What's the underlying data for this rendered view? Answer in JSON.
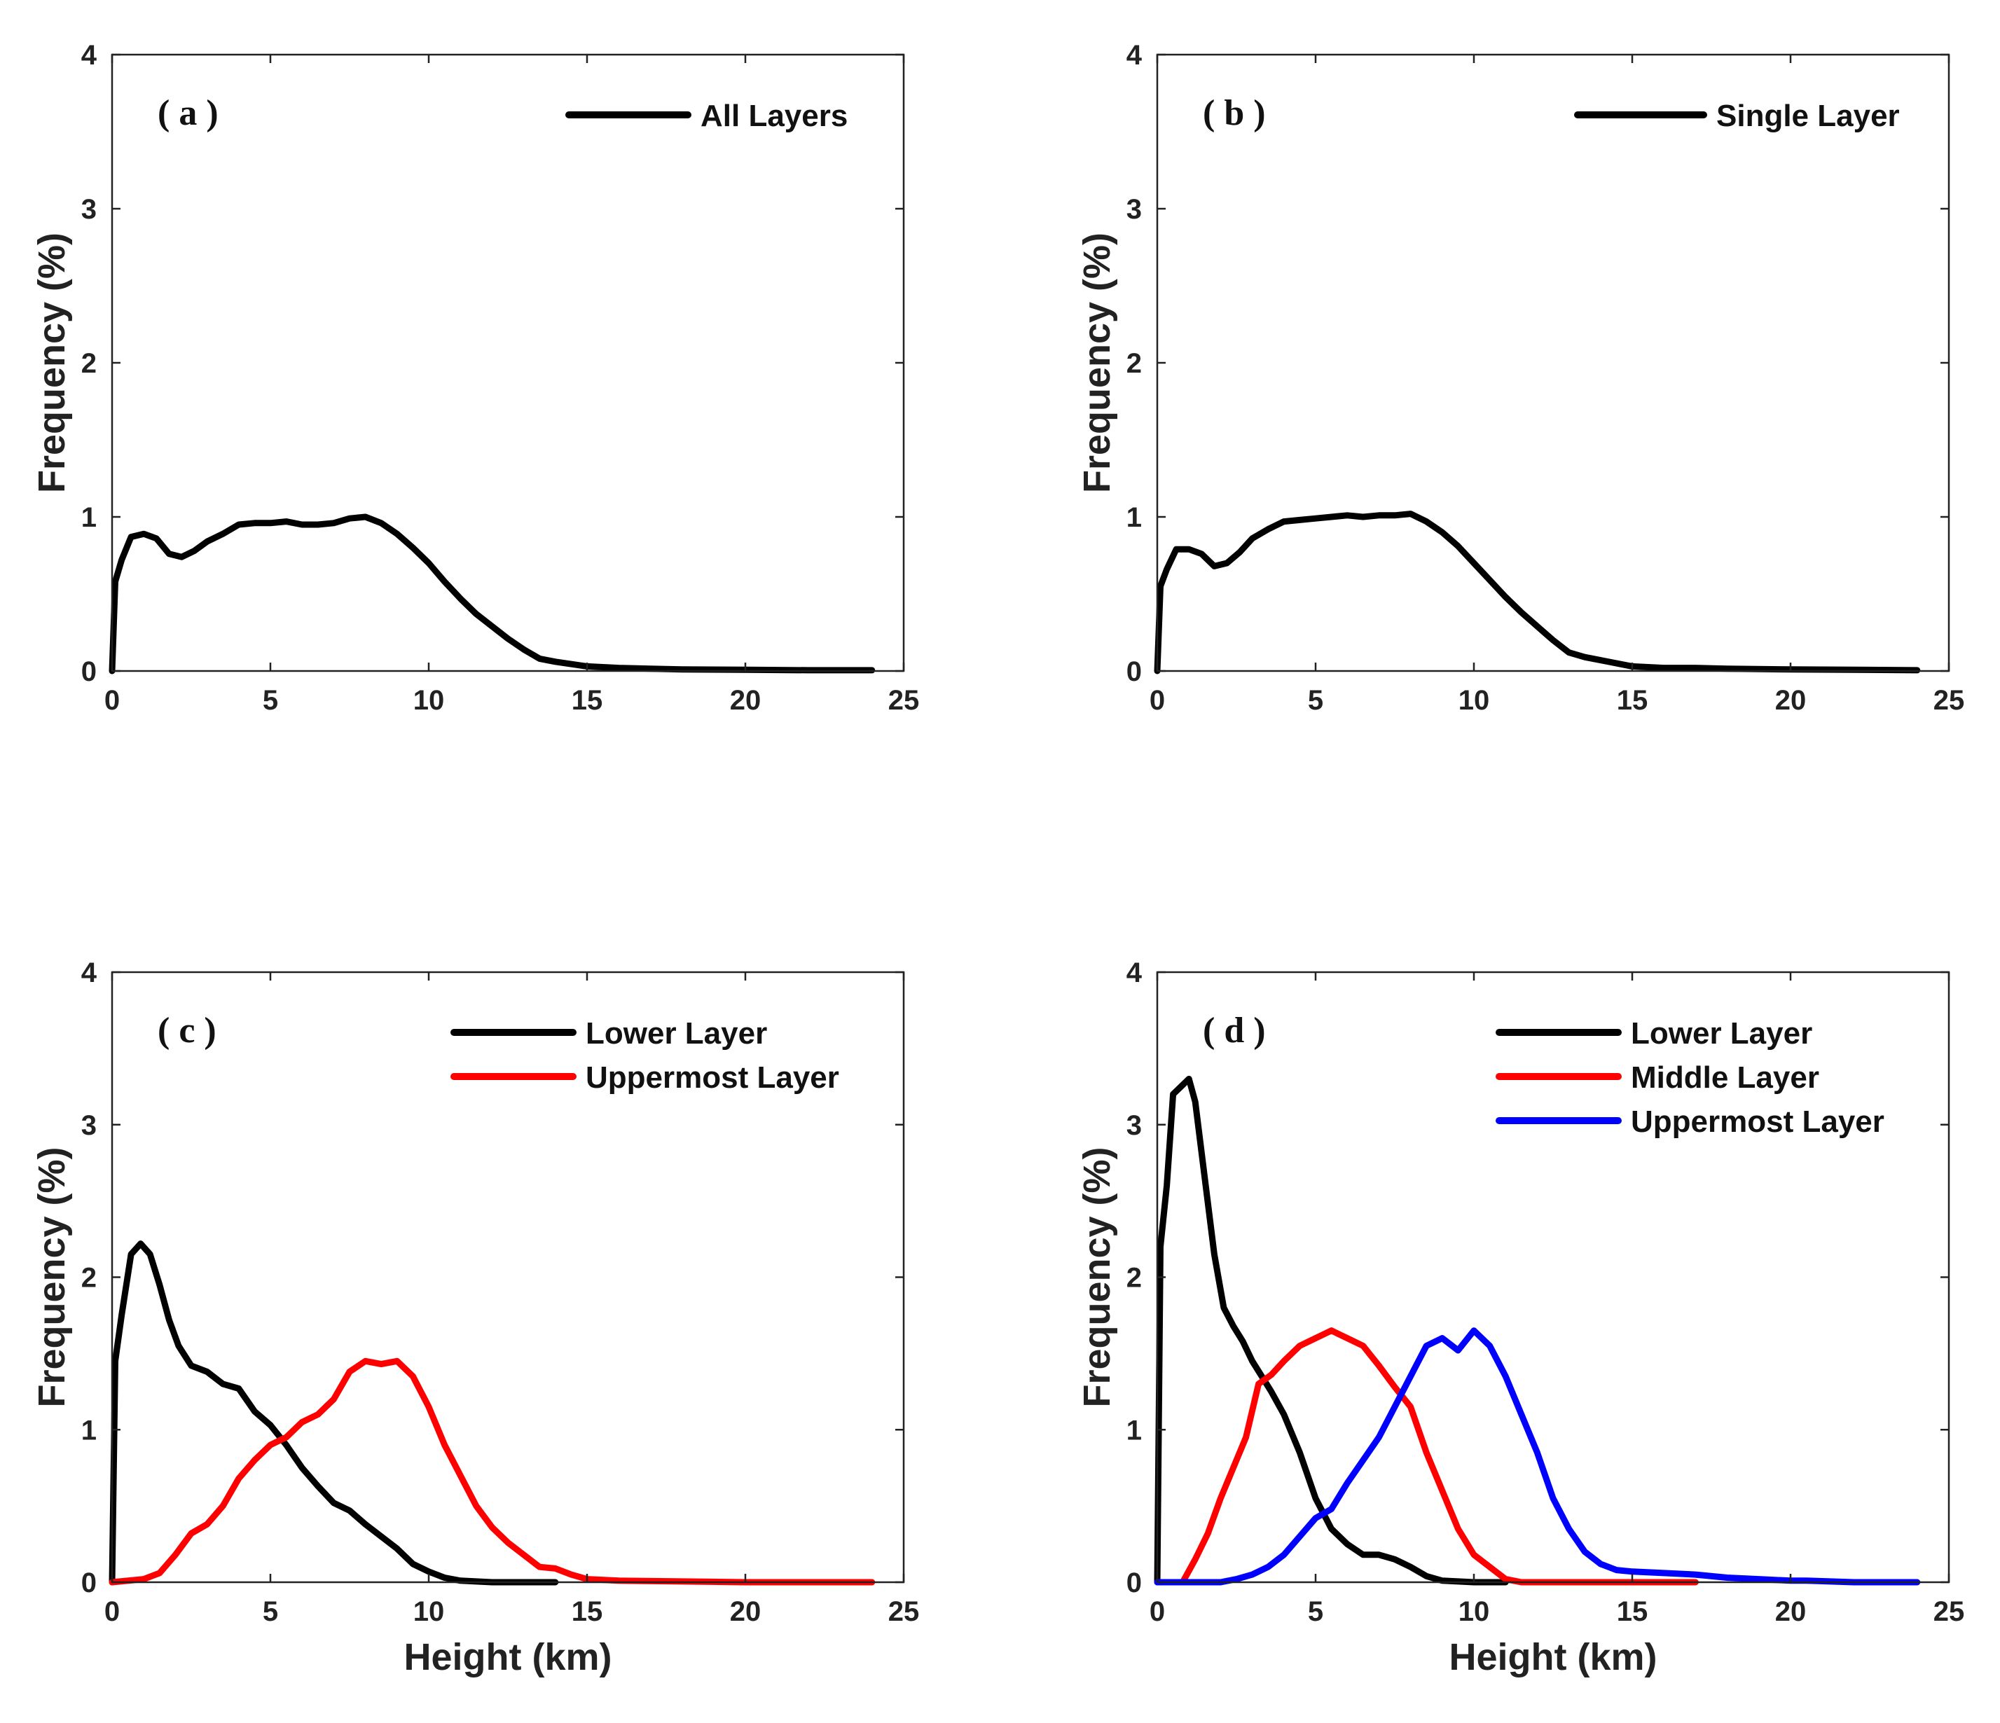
{
  "chart_data": [
    {
      "type": "line",
      "panel_label": "( a )",
      "xlabel": "",
      "ylabel": "Frequency (%)",
      "xlim": [
        0,
        25
      ],
      "ylim": [
        0,
        4
      ],
      "xticks": [
        0,
        5,
        10,
        15,
        20,
        25
      ],
      "yticks": [
        0,
        1,
        2,
        3,
        4
      ],
      "legend_position": "top-right",
      "series": [
        {
          "name": "All Layers",
          "color": "#000000",
          "x": [
            0,
            0.1,
            0.3,
            0.6,
            1.0,
            1.4,
            1.8,
            2.2,
            2.6,
            3.0,
            3.5,
            4.0,
            4.5,
            5.0,
            5.5,
            6.0,
            6.5,
            7.0,
            7.5,
            8.0,
            8.5,
            9.0,
            9.5,
            10.0,
            10.5,
            11.0,
            11.5,
            12.0,
            12.5,
            13.0,
            13.5,
            14.0,
            15.0,
            16.0,
            17.0,
            18.0,
            20.0,
            22.0,
            24.0
          ],
          "y": [
            0,
            0.58,
            0.72,
            0.87,
            0.89,
            0.86,
            0.76,
            0.74,
            0.78,
            0.84,
            0.89,
            0.95,
            0.96,
            0.96,
            0.97,
            0.95,
            0.95,
            0.96,
            0.99,
            1.0,
            0.96,
            0.89,
            0.8,
            0.7,
            0.58,
            0.47,
            0.37,
            0.29,
            0.21,
            0.14,
            0.08,
            0.06,
            0.03,
            0.02,
            0.015,
            0.01,
            0.008,
            0.005,
            0.005
          ]
        }
      ]
    },
    {
      "type": "line",
      "panel_label": "( b )",
      "xlabel": "",
      "ylabel": "Frequency (%)",
      "xlim": [
        0,
        25
      ],
      "ylim": [
        0,
        4
      ],
      "xticks": [
        0,
        5,
        10,
        15,
        20,
        25
      ],
      "yticks": [
        0,
        1,
        2,
        3,
        4
      ],
      "legend_position": "top-right",
      "series": [
        {
          "name": "Single Layer",
          "color": "#000000",
          "x": [
            0,
            0.1,
            0.3,
            0.6,
            1.0,
            1.4,
            1.8,
            2.2,
            2.6,
            3.0,
            3.5,
            4.0,
            4.5,
            5.0,
            5.5,
            6.0,
            6.5,
            7.0,
            7.5,
            8.0,
            8.5,
            9.0,
            9.5,
            10.0,
            10.5,
            11.0,
            11.5,
            12.0,
            12.5,
            13.0,
            13.5,
            14.0,
            15.0,
            16.0,
            17.0,
            18.0,
            20.0,
            22.0,
            24.0
          ],
          "y": [
            0,
            0.55,
            0.66,
            0.79,
            0.79,
            0.76,
            0.68,
            0.7,
            0.77,
            0.86,
            0.92,
            0.97,
            0.98,
            0.99,
            1.0,
            1.01,
            1.0,
            1.01,
            1.01,
            1.02,
            0.97,
            0.9,
            0.81,
            0.7,
            0.59,
            0.48,
            0.38,
            0.29,
            0.2,
            0.12,
            0.09,
            0.07,
            0.03,
            0.02,
            0.02,
            0.015,
            0.01,
            0.008,
            0.005
          ]
        }
      ]
    },
    {
      "type": "line",
      "panel_label": "( c )",
      "xlabel": "Height (km)",
      "ylabel": "Frequency (%)",
      "xlim": [
        0,
        25
      ],
      "ylim": [
        0,
        4
      ],
      "xticks": [
        0,
        5,
        10,
        15,
        20,
        25
      ],
      "yticks": [
        0,
        1,
        2,
        3,
        4
      ],
      "legend_position": "top-right",
      "series": [
        {
          "name": "Lower Layer",
          "color": "#000000",
          "x": [
            0,
            0.1,
            0.3,
            0.6,
            0.9,
            1.2,
            1.5,
            1.8,
            2.1,
            2.5,
            3.0,
            3.5,
            4.0,
            4.5,
            5.0,
            5.5,
            6.0,
            6.5,
            7.0,
            7.5,
            8.0,
            8.5,
            9.0,
            9.5,
            10.0,
            10.5,
            11.0,
            11.5,
            12.0,
            13.0,
            14.0
          ],
          "y": [
            0,
            1.45,
            1.75,
            2.15,
            2.22,
            2.15,
            1.95,
            1.72,
            1.55,
            1.42,
            1.38,
            1.3,
            1.27,
            1.12,
            1.03,
            0.9,
            0.75,
            0.63,
            0.52,
            0.47,
            0.38,
            0.3,
            0.22,
            0.12,
            0.07,
            0.03,
            0.01,
            0.005,
            0,
            0,
            0
          ]
        },
        {
          "name": "Uppermost Layer",
          "color": "#ff0000",
          "x": [
            0,
            1.0,
            1.5,
            2.0,
            2.5,
            3.0,
            3.5,
            4.0,
            4.5,
            5.0,
            5.5,
            6.0,
            6.5,
            7.0,
            7.5,
            8.0,
            8.5,
            9.0,
            9.5,
            10.0,
            10.5,
            11.0,
            11.5,
            12.0,
            12.5,
            13.0,
            13.5,
            14.0,
            14.5,
            15.0,
            16.0,
            18.0,
            20.0,
            24.0
          ],
          "y": [
            0,
            0.02,
            0.06,
            0.18,
            0.32,
            0.38,
            0.5,
            0.68,
            0.8,
            0.9,
            0.95,
            1.05,
            1.1,
            1.2,
            1.38,
            1.45,
            1.43,
            1.45,
            1.35,
            1.15,
            0.9,
            0.7,
            0.5,
            0.36,
            0.26,
            0.18,
            0.1,
            0.09,
            0.05,
            0.02,
            0.01,
            0.005,
            0,
            0
          ]
        }
      ]
    },
    {
      "type": "line",
      "panel_label": "( d )",
      "xlabel": "Height (km)",
      "ylabel": "Frequency (%)",
      "xlim": [
        0,
        25
      ],
      "ylim": [
        0,
        4
      ],
      "xticks": [
        0,
        5,
        10,
        15,
        20,
        25
      ],
      "yticks": [
        0,
        1,
        2,
        3,
        4
      ],
      "legend_position": "top-right",
      "series": [
        {
          "name": "Lower Layer",
          "color": "#000000",
          "x": [
            0,
            0.1,
            0.3,
            0.5,
            0.8,
            1.0,
            1.2,
            1.5,
            1.8,
            2.1,
            2.4,
            2.7,
            3.0,
            3.3,
            3.6,
            4.0,
            4.5,
            5.0,
            5.5,
            6.0,
            6.5,
            7.0,
            7.5,
            8.0,
            8.5,
            9.0,
            9.5,
            10.0,
            11.0
          ],
          "y": [
            0,
            2.2,
            2.6,
            3.2,
            3.26,
            3.3,
            3.15,
            2.65,
            2.15,
            1.8,
            1.68,
            1.58,
            1.45,
            1.35,
            1.25,
            1.1,
            0.85,
            0.55,
            0.35,
            0.25,
            0.18,
            0.18,
            0.15,
            0.1,
            0.04,
            0.01,
            0.005,
            0,
            0
          ]
        },
        {
          "name": "Middle Layer",
          "color": "#ff0000",
          "x": [
            0,
            0.8,
            1.2,
            1.6,
            2.0,
            2.4,
            2.8,
            3.2,
            3.6,
            4.0,
            4.5,
            5.0,
            5.5,
            6.0,
            6.5,
            7.0,
            7.5,
            8.0,
            8.5,
            9.0,
            9.5,
            10.0,
            10.5,
            11.0,
            11.5,
            12.0,
            14.0,
            17.0
          ],
          "y": [
            0,
            0,
            0.15,
            0.32,
            0.55,
            0.75,
            0.95,
            1.3,
            1.36,
            1.45,
            1.55,
            1.6,
            1.65,
            1.6,
            1.55,
            1.42,
            1.28,
            1.15,
            0.85,
            0.6,
            0.35,
            0.18,
            0.1,
            0.02,
            0,
            0,
            0,
            0
          ]
        },
        {
          "name": "Uppermost Layer",
          "color": "#0000ff",
          "x": [
            0,
            2.0,
            2.5,
            3.0,
            3.5,
            4.0,
            4.5,
            5.0,
            5.5,
            6.0,
            6.5,
            7.0,
            7.5,
            8.0,
            8.5,
            9.0,
            9.5,
            10.0,
            10.5,
            11.0,
            11.5,
            12.0,
            12.5,
            13.0,
            13.5,
            14.0,
            14.5,
            15.0,
            16.0,
            17.0,
            18.0,
            19.0,
            20.0,
            20.5,
            22.0,
            24.0
          ],
          "y": [
            0,
            0,
            0.02,
            0.05,
            0.1,
            0.18,
            0.3,
            0.42,
            0.48,
            0.65,
            0.8,
            0.95,
            1.15,
            1.35,
            1.55,
            1.6,
            1.52,
            1.65,
            1.55,
            1.35,
            1.1,
            0.85,
            0.55,
            0.35,
            0.2,
            0.12,
            0.08,
            0.07,
            0.06,
            0.05,
            0.03,
            0.02,
            0.01,
            0.01,
            0,
            0
          ]
        }
      ]
    }
  ]
}
